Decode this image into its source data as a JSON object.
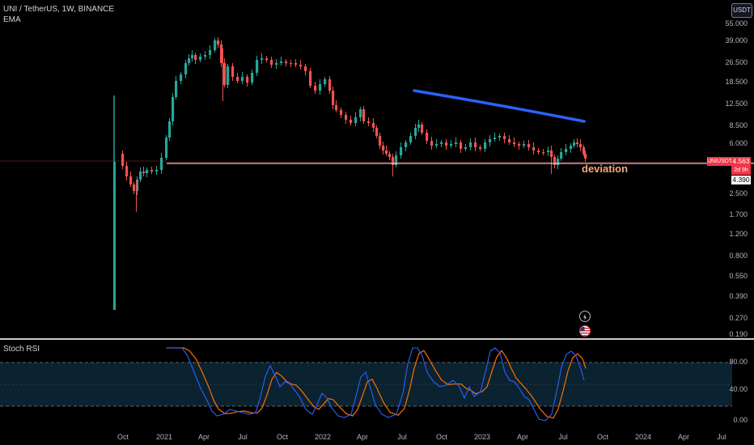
{
  "header": {
    "symbol_title": "UNI / TetherUS, 1W, BINANCE",
    "indicator_ema": "EMA",
    "currency_button": "USDT"
  },
  "price_axis": {
    "ticks": [
      "55.000",
      "39.000",
      "26.500",
      "18.500",
      "12.500",
      "8.500",
      "6.000",
      "2.500",
      "1.700",
      "1.200",
      "0.800",
      "0.550",
      "0.390",
      "0.270",
      "0.190"
    ]
  },
  "badges": {
    "symbol_label": "UNIUSDT",
    "last_price": "4.563",
    "countdown": "2d 9h",
    "line_price": "4.390",
    "colors": {
      "symbol_bg": "#f23645",
      "line_bg": "#ffffff"
    }
  },
  "annotation": {
    "deviation_text": "deviation",
    "trendline_color": "#2962ff",
    "horizontal_line_color": "#ffffff"
  },
  "rsi": {
    "title": "Stoch RSI",
    "ticks": [
      "80.00",
      "40.00",
      "0.00"
    ],
    "colors": {
      "k": "#2962ff",
      "d": "#ff6d00",
      "band": "#0b2230"
    }
  },
  "time_axis": {
    "ticks": [
      "Oct",
      "2021",
      "Apr",
      "Jul",
      "Oct",
      "2022",
      "Apr",
      "Jul",
      "Oct",
      "2023",
      "Apr",
      "Jul",
      "Oct",
      "2024",
      "Apr",
      "Jul"
    ]
  },
  "icons": {
    "flash": "lightning-icon",
    "flag": "us-flag-icon"
  },
  "colors": {
    "up": "#26a69a",
    "down": "#ef5350",
    "background": "#000000"
  }
}
